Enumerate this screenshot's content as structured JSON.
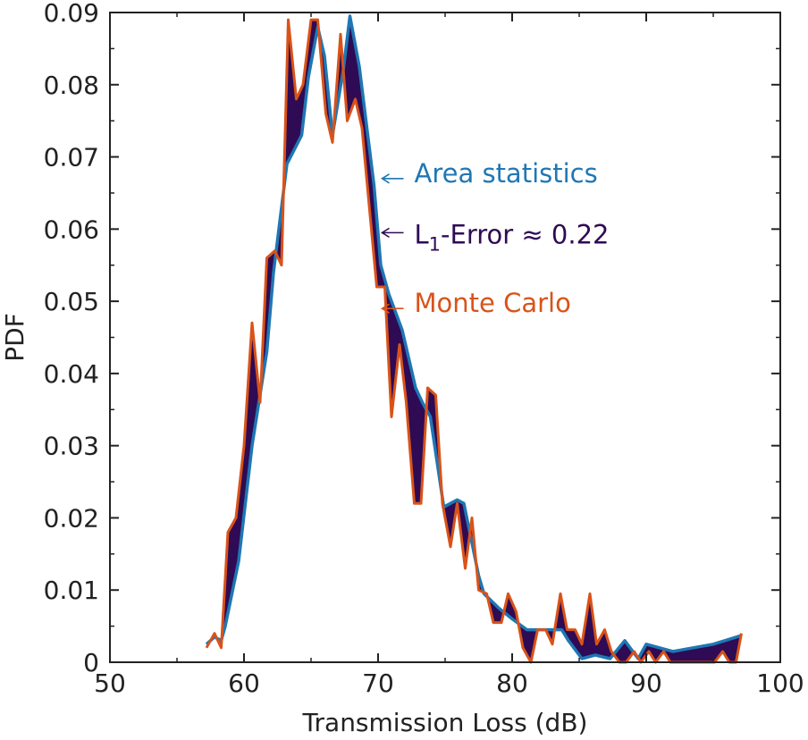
{
  "chart_data": {
    "type": "area",
    "xlabel": "Transmission Loss (dB)",
    "ylabel": "PDF",
    "xlim": [
      50,
      100
    ],
    "ylim": [
      0,
      0.09
    ],
    "x_ticks": [
      "50",
      "60",
      "70",
      "80",
      "90",
      "100"
    ],
    "y_ticks": [
      "0",
      "0.01",
      "0.02",
      "0.03",
      "0.04",
      "0.05",
      "0.06",
      "0.07",
      "0.08",
      "0.09"
    ],
    "grid": false,
    "series": [
      {
        "name": "Area statistics",
        "color": "#1f77b4",
        "x": [
          57.2,
          57.8,
          58.3,
          58.6,
          59.6,
          60.6,
          61.7,
          62.2,
          63.2,
          64.3,
          64.8,
          65.5,
          66.0,
          66.6,
          67.4,
          67.9,
          68.6,
          69.7,
          70.2,
          70.8,
          71.8,
          72.8,
          73.3,
          73.9,
          74.9,
          75.9,
          76.4,
          77.5,
          77.9,
          79.0,
          80.0,
          81.1,
          81.6,
          82.6,
          83.7,
          84.2,
          85.2,
          86.2,
          87.3,
          88.4,
          89.4,
          90.0,
          92.0,
          95.0,
          97.1
        ],
        "y": [
          0.0025,
          0.0035,
          0.003,
          0.005,
          0.014,
          0.03,
          0.043,
          0.054,
          0.069,
          0.073,
          0.081,
          0.088,
          0.084,
          0.073,
          0.082,
          0.0895,
          0.0825,
          0.066,
          0.055,
          0.051,
          0.046,
          0.038,
          0.036,
          0.034,
          0.0215,
          0.0225,
          0.022,
          0.012,
          0.0095,
          0.0075,
          0.006,
          0.0045,
          0.0045,
          0.0045,
          0.0045,
          0.003,
          0.0005,
          0.001,
          0.0005,
          0.003,
          0.0005,
          0.0025,
          0.0015,
          0.0025,
          0.0037
        ]
      },
      {
        "name": "Monte Carlo",
        "color": "#d95319",
        "x": [
          57.2,
          57.8,
          58.3,
          58.8,
          59.4,
          60.0,
          60.6,
          61.2,
          61.7,
          62.3,
          62.8,
          63.3,
          63.9,
          64.4,
          65.0,
          65.5,
          66.1,
          66.6,
          67.2,
          67.7,
          68.3,
          68.8,
          69.4,
          69.9,
          70.5,
          71.0,
          71.6,
          72.1,
          72.7,
          73.2,
          73.7,
          74.3,
          74.8,
          75.4,
          75.9,
          76.5,
          77.0,
          77.5,
          78.1,
          78.6,
          79.2,
          79.7,
          80.3,
          80.8,
          81.4,
          81.9,
          82.5,
          83.0,
          83.6,
          84.1,
          84.7,
          85.2,
          85.8,
          86.3,
          86.9,
          87.4,
          88.0,
          88.5,
          89.1,
          89.6,
          90.2,
          90.7,
          91.3,
          91.8,
          92.4,
          92.9,
          93.5,
          94.0,
          94.6,
          95.1,
          95.7,
          96.2,
          96.7,
          97.1
        ],
        "y": [
          0.002,
          0.004,
          0.002,
          0.018,
          0.02,
          0.03,
          0.047,
          0.036,
          0.056,
          0.057,
          0.055,
          0.089,
          0.078,
          0.08,
          0.089,
          0.089,
          0.076,
          0.072,
          0.087,
          0.075,
          0.078,
          0.074,
          0.062,
          0.052,
          0.052,
          0.034,
          0.044,
          0.036,
          0.022,
          0.022,
          0.038,
          0.037,
          0.022,
          0.016,
          0.022,
          0.013,
          0.02,
          0.01,
          0.0095,
          0.0055,
          0.0055,
          0.0095,
          0.007,
          0.002,
          0.0,
          0.0045,
          0.0045,
          0.0025,
          0.0095,
          0.0045,
          0.0045,
          0.0025,
          0.0095,
          0.0025,
          0.0045,
          0.0015,
          0.0,
          0.0,
          0.0015,
          0.0,
          0.0015,
          0.0,
          0.0015,
          0.0,
          0.0,
          0.0,
          0.0,
          0.0,
          0.0,
          0.0,
          0.0015,
          0.0,
          0.0,
          0.004
        ]
      }
    ],
    "fill_between_color": "#2e0b54",
    "annotations": [
      {
        "text": "Area statistics",
        "color": "#1f77b4",
        "x": 72.7,
        "y": 0.0665,
        "arrow_x": 70.3,
        "arrow_y": 0.067
      },
      {
        "text_main": "L",
        "text_sub": "1",
        "text_rest": "-Error ≈ 0.22",
        "color": "#2e0b54",
        "x": 72.7,
        "y": 0.058,
        "arrow_x": 70.3,
        "arrow_y": 0.0595
      },
      {
        "text": "Monte Carlo",
        "color": "#d95319",
        "x": 72.7,
        "y": 0.0485,
        "arrow_x": 70.3,
        "arrow_y": 0.049
      }
    ]
  }
}
